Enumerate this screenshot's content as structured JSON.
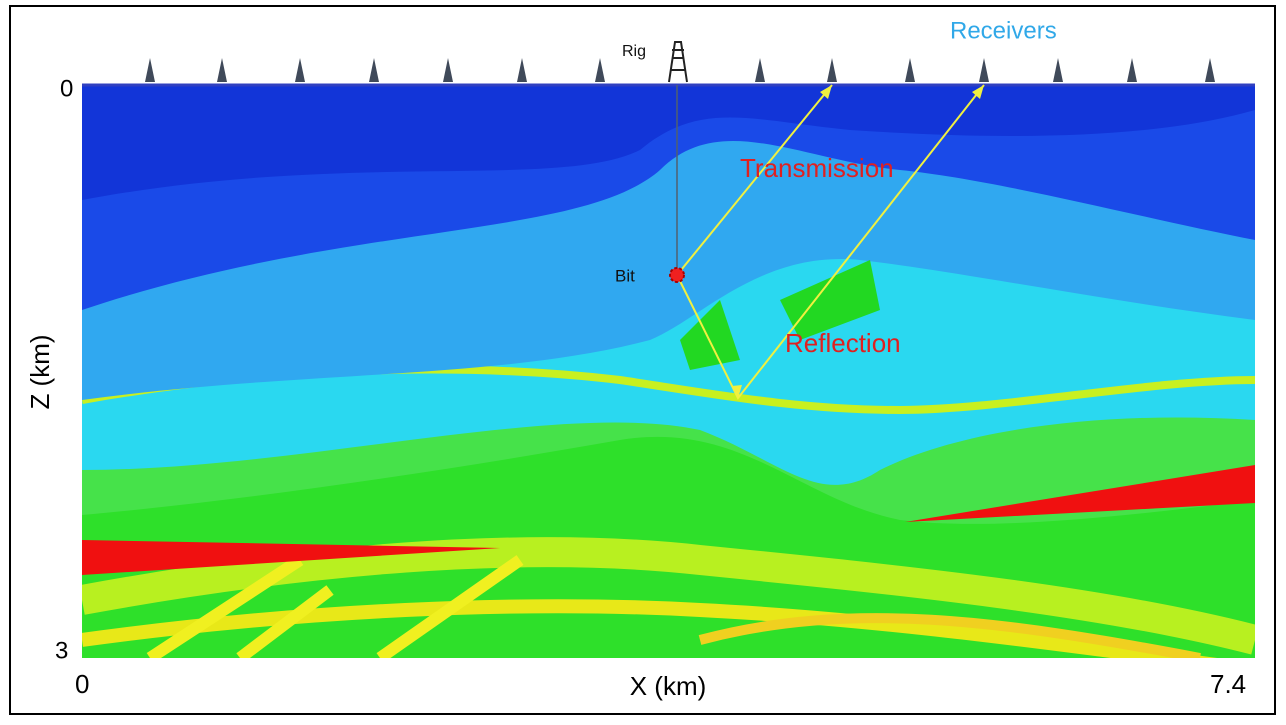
{
  "labels": {
    "receivers": "Receivers",
    "rig": "Rig",
    "bit": "Bit",
    "transmission": "Transmission",
    "reflection": "Reflection"
  },
  "axes": {
    "x_label": "X (km)",
    "y_label": "Z (km)",
    "x_ticks": [
      "0",
      "7.4"
    ],
    "y_ticks": [
      "0",
      "3"
    ]
  }
}
